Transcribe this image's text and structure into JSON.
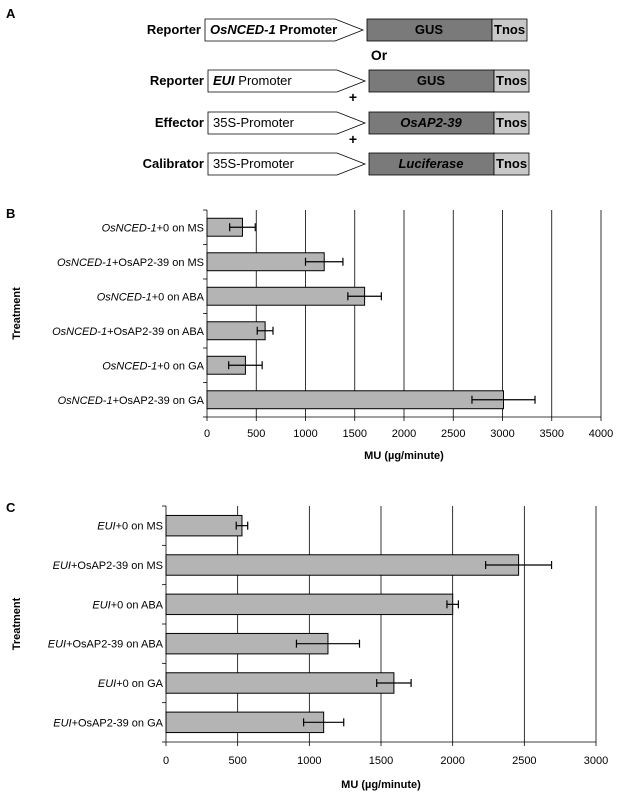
{
  "colors": {
    "bar_fill": "#b4b4b4",
    "gus_box": "#7a7a7a",
    "tnos_box": "#c8c8c8",
    "promoter_fill": "#ffffff",
    "gridline": "#000000"
  },
  "panel_a": {
    "panel_letter": "A",
    "rows": [
      {
        "role": "Reporter",
        "promoter_italic": "OsNCED-1",
        "promoter_rest": " Promoter",
        "promoter_bold": true,
        "gene": "GUS",
        "gene_italic": false,
        "terminator": "Tnos"
      },
      {
        "role": "Reporter",
        "promoter_italic": "EUI",
        "promoter_rest": " Promoter",
        "promoter_bold": false,
        "gene": "GUS",
        "gene_italic": false,
        "terminator": "Tnos"
      },
      {
        "role": "Effector",
        "promoter_italic": "",
        "promoter_rest": "35S-Promoter",
        "promoter_bold": false,
        "gene": "OsAP2-39",
        "gene_italic": true,
        "terminator": "Tnos"
      },
      {
        "role": "Calibrator",
        "promoter_italic": "",
        "promoter_rest": "35S-Promoter",
        "promoter_bold": false,
        "gene": "Luciferase",
        "gene_italic": true,
        "terminator": "Tnos"
      }
    ],
    "connectors": [
      "Or",
      "+",
      "+"
    ]
  },
  "chart_data": [
    {
      "panel": "B",
      "type": "bar",
      "orientation": "horizontal",
      "ylabel": "Treatment",
      "xlabel": "MU (µg/minute)",
      "xlim": [
        0,
        4000
      ],
      "xticks": [
        0,
        500,
        1000,
        1500,
        2000,
        2500,
        3000,
        3500,
        4000
      ],
      "grid": "vertical",
      "categories": [
        {
          "italic": "OsNCED-1",
          "rest": "+0 on MS"
        },
        {
          "italic": "OsNCED-1",
          "rest": "+OsAP2-39 on MS"
        },
        {
          "italic": "OsNCED-1",
          "rest": "+0 on ABA"
        },
        {
          "italic": "OsNCED-1",
          "rest": "+OsAP2-39 on ABA"
        },
        {
          "italic": "OsNCED-1",
          "rest": "+0 on GA"
        },
        {
          "italic": "OsNCED-1",
          "rest": "+OsAP2-39 on GA"
        }
      ],
      "values": [
        360,
        1190,
        1600,
        590,
        390,
        3010
      ],
      "errors": [
        130,
        190,
        170,
        80,
        170,
        320
      ]
    },
    {
      "panel": "C",
      "type": "bar",
      "orientation": "horizontal",
      "ylabel": "Treatment",
      "xlabel": "MU (µg/minute)",
      "xlim": [
        0,
        3000
      ],
      "xticks": [
        0,
        500,
        1000,
        1500,
        2000,
        2500,
        3000
      ],
      "grid": "vertical",
      "categories": [
        {
          "italic": "EUI",
          "rest": "+0 on MS"
        },
        {
          "italic": "EUI",
          "rest": "+OsAP2-39 on MS"
        },
        {
          "italic": "EUI",
          "rest": "+0 on ABA"
        },
        {
          "italic": "EUI",
          "rest": "+OsAP2-39 on ABA"
        },
        {
          "italic": "EUI",
          "rest": "+0 on GA"
        },
        {
          "italic": "EUI",
          "rest": "+OsAP2-39 on GA"
        }
      ],
      "values": [
        530,
        2460,
        2000,
        1130,
        1590,
        1100
      ],
      "errors": [
        40,
        230,
        40,
        220,
        120,
        140
      ]
    }
  ]
}
